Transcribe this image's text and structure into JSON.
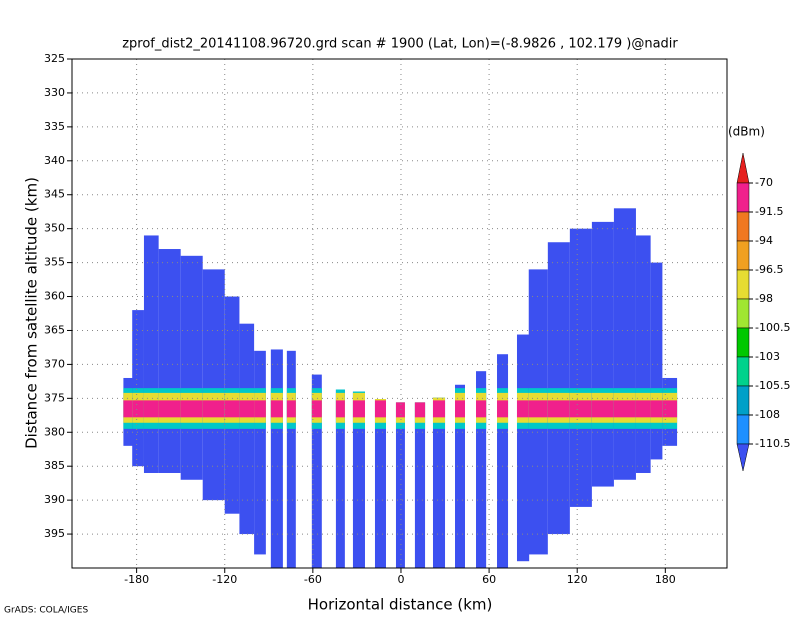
{
  "chart_data": {
    "type": "shaded-profile",
    "title": "zprof_dist2_20141108.96720.grd  scan # 1900  (Lat, Lon)=(-8.9826 , 102.179 )@nadir",
    "x_label": "Horizontal distance (km)",
    "y_label": "Distance from satellite altitude (km)",
    "colorbar_unit": "(dBm)",
    "credit": "GrADS: COLA/IGES",
    "xlim": [
      -224,
      222
    ],
    "ylim": [
      325,
      400
    ],
    "y_inverted": true,
    "xticks": [
      -180,
      -120,
      -60,
      0,
      60,
      120,
      180
    ],
    "yticks": [
      325,
      330,
      335,
      340,
      345,
      350,
      355,
      360,
      365,
      370,
      375,
      380,
      385,
      390,
      395
    ],
    "grid": true,
    "swath_color": "#3c50f0",
    "swath": [
      {
        "x0": -189,
        "x1": -180,
        "top": 372,
        "bottom": 382
      },
      {
        "x0": -183,
        "x1": -175,
        "top": 362,
        "bottom": 385
      },
      {
        "x0": -175,
        "x1": -165,
        "top": 351,
        "bottom": 386
      },
      {
        "x0": -165,
        "x1": -150,
        "top": 353,
        "bottom": 386
      },
      {
        "x0": -150,
        "x1": -135,
        "top": 354,
        "bottom": 387
      },
      {
        "x0": -135,
        "x1": -120,
        "top": 356,
        "bottom": 390
      },
      {
        "x0": -120,
        "x1": -110,
        "top": 360,
        "bottom": 392
      },
      {
        "x0": -110,
        "x1": -100,
        "top": 364,
        "bottom": 395
      },
      {
        "x0": -100,
        "x1": -92,
        "top": 368,
        "bottom": 398
      },
      {
        "x0": -88.6,
        "x1": -80.4,
        "top": 367.8,
        "bottom": 400
      },
      {
        "x0": -77.7,
        "x1": -71.6,
        "top": 368,
        "bottom": 400
      },
      {
        "x0": -60.7,
        "x1": -53.9,
        "top": 371.5,
        "bottom": 400
      },
      {
        "x0": -44.3,
        "x1": -38.2,
        "top": 373.7,
        "bottom": 400
      },
      {
        "x0": -32.7,
        "x1": -24.5,
        "top": 374,
        "bottom": 400
      },
      {
        "x0": -17.7,
        "x1": -10.2,
        "top": 375.1,
        "bottom": 400
      },
      {
        "x0": -3.4,
        "x1": 2.7,
        "top": 375.6,
        "bottom": 400
      },
      {
        "x0": 9.5,
        "x1": 16.4,
        "top": 375.6,
        "bottom": 400
      },
      {
        "x0": 21.8,
        "x1": 30,
        "top": 374.9,
        "bottom": 400
      },
      {
        "x0": 36.8,
        "x1": 43.6,
        "top": 373,
        "bottom": 400
      },
      {
        "x0": 51.1,
        "x1": 58,
        "top": 371,
        "bottom": 400
      },
      {
        "x0": 65.4,
        "x1": 72.9,
        "top": 368.5,
        "bottom": 400
      },
      {
        "x0": 79,
        "x1": 87.3,
        "top": 365.6,
        "bottom": 399
      },
      {
        "x0": 87,
        "x1": 100,
        "top": 356,
        "bottom": 398
      },
      {
        "x0": 100,
        "x1": 115,
        "top": 352,
        "bottom": 395
      },
      {
        "x0": 115,
        "x1": 130,
        "top": 350,
        "bottom": 391
      },
      {
        "x0": 130,
        "x1": 145,
        "top": 349,
        "bottom": 388
      },
      {
        "x0": 145,
        "x1": 160,
        "top": 347,
        "bottom": 387
      },
      {
        "x0": 160,
        "x1": 170,
        "top": 351,
        "bottom": 386
      },
      {
        "x0": 170,
        "x1": 178,
        "top": 355,
        "bottom": 384
      },
      {
        "x0": 178,
        "x1": 188,
        "top": 372,
        "bottom": 382
      }
    ],
    "surface_layers": [
      {
        "color": "#00c8c8",
        "top": 373.5,
        "bottom": 379.5
      },
      {
        "color": "#e6dc32",
        "top": 374.2,
        "bottom": 378.6
      },
      {
        "color": "#f0208c",
        "top": 375.3,
        "bottom": 377.8
      }
    ],
    "levels": [
      -70,
      -91.5,
      -94,
      -96.5,
      -98,
      -100.5,
      -103,
      -105.5,
      -108,
      -110.5
    ],
    "level_colors": [
      "#e6201e",
      "#f0208c",
      "#f07820",
      "#f0a020",
      "#e6dc32",
      "#a0e632",
      "#00c800",
      "#00d28c",
      "#00a0c8",
      "#1e90ff",
      "#3c50f0"
    ]
  }
}
